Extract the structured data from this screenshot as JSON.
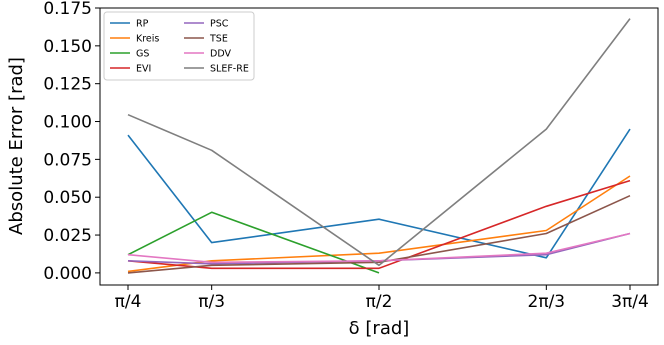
{
  "chart_data": {
    "type": "line",
    "title": "",
    "xlabel": "δ [rad]",
    "ylabel": "Absolute Error [rad]",
    "categories": [
      "π/4",
      "π/3",
      "π/2",
      "2π/3",
      "3π/4"
    ],
    "x": [
      0.7854,
      1.0472,
      1.5708,
      2.0944,
      2.3562
    ],
    "ylim": [
      -0.008,
      0.175
    ],
    "yticks": [
      "0.000",
      "0.025",
      "0.050",
      "0.075",
      "0.100",
      "0.125",
      "0.150",
      "0.175"
    ],
    "grid": false,
    "legend_position": "top-left",
    "series": [
      {
        "name": "RP",
        "color": "#1f77b4",
        "values": [
          0.091,
          0.02,
          0.0355,
          0.01,
          0.095
        ]
      },
      {
        "name": "Kreis",
        "color": "#ff7f0e",
        "values": [
          0.001,
          0.008,
          0.013,
          0.028,
          0.064
        ]
      },
      {
        "name": "GS",
        "color": "#2ca02c",
        "values": [
          0.012,
          0.04,
          0.0,
          null,
          null
        ]
      },
      {
        "name": "EVI",
        "color": "#d62728",
        "values": [
          0.008,
          0.003,
          0.003,
          0.044,
          0.061
        ]
      },
      {
        "name": "PSC",
        "color": "#9467bd",
        "values": [
          0.008,
          0.006,
          0.008,
          0.012,
          0.026
        ]
      },
      {
        "name": "TSE",
        "color": "#8c564b",
        "values": [
          0.0,
          0.005,
          0.007,
          0.026,
          0.051
        ]
      },
      {
        "name": "DDV",
        "color": "#e377c2",
        "values": [
          0.012,
          0.007,
          0.008,
          0.013,
          0.026
        ]
      },
      {
        "name": "SLEF-RE",
        "color": "#7f7f7f",
        "values": [
          0.1045,
          0.081,
          0.005,
          0.095,
          0.168
        ]
      }
    ]
  }
}
